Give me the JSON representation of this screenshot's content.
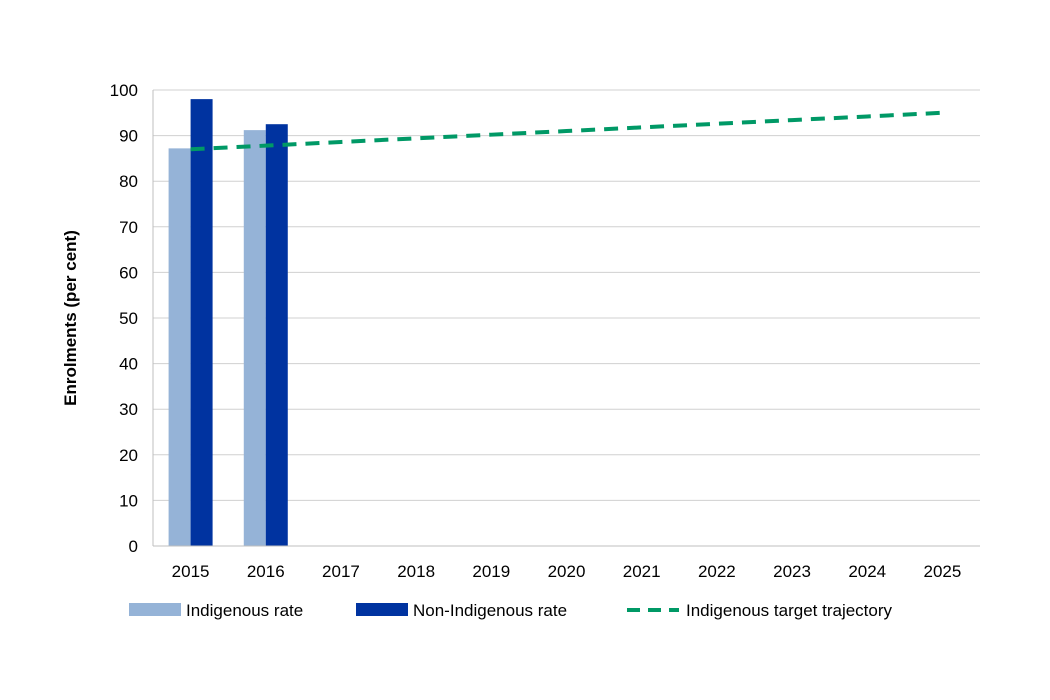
{
  "chart_data": {
    "type": "bar",
    "title": "",
    "xlabel": "",
    "ylabel": "Enrolments (per cent)",
    "ylim": [
      0,
      100
    ],
    "yticks": [
      0,
      10,
      20,
      30,
      40,
      50,
      60,
      70,
      80,
      90,
      100
    ],
    "categories": [
      "2015",
      "2016",
      "2017",
      "2018",
      "2019",
      "2020",
      "2021",
      "2022",
      "2023",
      "2024",
      "2025"
    ],
    "grid": true,
    "legend_position": "bottom",
    "series": [
      {
        "name": "Indigenous rate",
        "kind": "bar",
        "color": "#95b3d7",
        "values": [
          87.2,
          91.2,
          null,
          null,
          null,
          null,
          null,
          null,
          null,
          null,
          null
        ]
      },
      {
        "name": "Non-Indigenous rate",
        "kind": "bar",
        "color": "#0033a0",
        "values": [
          98.0,
          92.5,
          null,
          null,
          null,
          null,
          null,
          null,
          null,
          null,
          null
        ]
      },
      {
        "name": "Indigenous target trajectory",
        "kind": "line",
        "style": "dashed",
        "color": "#009966",
        "values": [
          87.0,
          87.8,
          88.6,
          89.4,
          90.2,
          91.0,
          91.8,
          92.6,
          93.4,
          94.2,
          95.0
        ]
      }
    ]
  }
}
